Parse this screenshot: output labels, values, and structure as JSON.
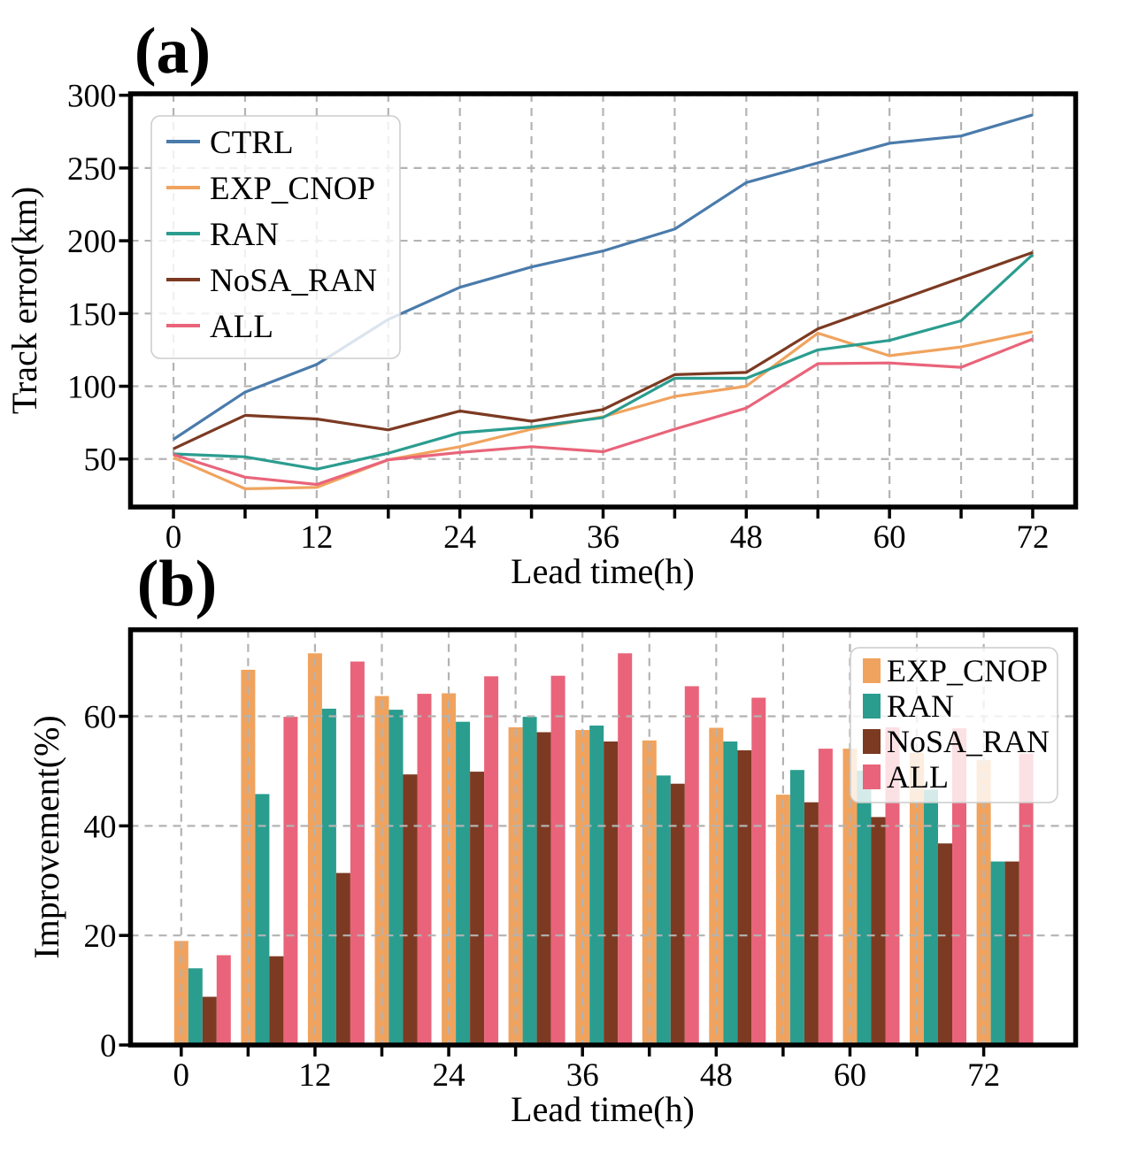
{
  "figure": {
    "background": "#ffffff"
  },
  "panel_a": {
    "title": "(a)",
    "xlabel": "Lead time(h)",
    "ylabel": "Track error(km)",
    "x_tick_labels": [
      "0",
      "12",
      "24",
      "36",
      "48",
      "60",
      "72"
    ],
    "y_tick_labels": [
      "50",
      "100",
      "150",
      "200",
      "250",
      "300"
    ]
  },
  "panel_b": {
    "title": "(b)",
    "xlabel": "Lead time(h)",
    "ylabel": "Improvement(%)",
    "x_tick_labels": [
      "0",
      "12",
      "24",
      "36",
      "48",
      "60",
      "72"
    ],
    "y_tick_labels": [
      "0",
      "20",
      "40",
      "60"
    ]
  },
  "chart_data": [
    {
      "type": "line",
      "panel": "a",
      "title": "(a)",
      "xlabel": "Lead time(h)",
      "ylabel": "Track error(km)",
      "x": [
        0,
        6,
        12,
        18,
        24,
        30,
        36,
        42,
        48,
        54,
        60,
        66,
        72
      ],
      "series": [
        {
          "name": "CTRL",
          "color": "#4A7BAB",
          "values": [
            63.5,
            96,
            115,
            146,
            168,
            182,
            193,
            208,
            240,
            253.5,
            267,
            272,
            286.5
          ]
        },
        {
          "name": "EXP_CNOP",
          "color": "#F0A35E",
          "values": [
            51,
            29.5,
            30.5,
            49.5,
            58.5,
            70.5,
            79,
            93,
            100,
            136.5,
            121,
            127,
            137.5
          ]
        },
        {
          "name": "RAN",
          "color": "#2A9D8F",
          "values": [
            53.5,
            51.5,
            43,
            54,
            68,
            72,
            78.5,
            105.5,
            105.5,
            125,
            131.5,
            145,
            190.5
          ]
        },
        {
          "name": "NoSA_RAN",
          "color": "#7C3A22",
          "values": [
            57,
            80,
            77.5,
            70,
            83,
            76,
            84,
            108,
            109.5,
            139.5,
            157,
            174.5,
            192
          ]
        },
        {
          "name": "ALL",
          "color": "#E9647A",
          "values": [
            53,
            37.5,
            32.5,
            49.5,
            54.5,
            58.5,
            55,
            70.5,
            85,
            115.5,
            116,
            113,
            132.5
          ]
        }
      ],
      "xlim": [
        -3.6,
        75.6
      ],
      "ylim": [
        17,
        301
      ],
      "x_grid_ticks": [
        0,
        6,
        12,
        18,
        24,
        30,
        36,
        42,
        48,
        54,
        60,
        66,
        72
      ],
      "x_label_ticks": [
        0,
        12,
        24,
        36,
        48,
        60,
        72
      ],
      "y_ticks": [
        50,
        100,
        150,
        200,
        250,
        300
      ],
      "grid": true,
      "legend_position": "upper left"
    },
    {
      "type": "bar",
      "panel": "b",
      "title": "(b)",
      "xlabel": "Lead time(h)",
      "ylabel": "Improvement(%)",
      "x": [
        0,
        6,
        12,
        18,
        24,
        30,
        36,
        42,
        48,
        54,
        60,
        66,
        72
      ],
      "series": [
        {
          "name": "EXP_CNOP",
          "color": "#F0A35E",
          "values": [
            19,
            68.5,
            71.5,
            63.7,
            64.2,
            58,
            57.5,
            55.6,
            57.9,
            45.7,
            54.1,
            53.3,
            52
          ]
        },
        {
          "name": "RAN",
          "color": "#2A9D8F",
          "values": [
            14,
            45.8,
            61.4,
            61.2,
            59,
            59.9,
            58.3,
            49.2,
            55.4,
            50.2,
            50.1,
            46.6,
            33.5
          ]
        },
        {
          "name": "NoSA_RAN",
          "color": "#7C3A22",
          "values": [
            8.8,
            16.2,
            31.4,
            49.4,
            49.9,
            57.1,
            55.4,
            47.7,
            53.8,
            44.3,
            41.6,
            36.8,
            33.5
          ]
        },
        {
          "name": "ALL",
          "color": "#E9647A",
          "values": [
            16.4,
            59.9,
            70,
            64.1,
            67.3,
            67.4,
            71.5,
            65.5,
            63.4,
            54.1,
            58,
            57.8,
            53.2
          ]
        }
      ],
      "bar_offset_hours": 1.27,
      "bar_width_hours": 1.27,
      "xlim": [
        -4.55,
        80.25
      ],
      "ylim": [
        0,
        75.8
      ],
      "x_grid_ticks": [
        0,
        6,
        12,
        18,
        24,
        30,
        36,
        42,
        48,
        54,
        60,
        66,
        72
      ],
      "x_label_ticks": [
        0,
        12,
        24,
        36,
        48,
        60,
        72
      ],
      "y_ticks": [
        0,
        20,
        40,
        60
      ],
      "grid": true,
      "grid_above_bars": true,
      "legend_position": "upper right"
    }
  ]
}
